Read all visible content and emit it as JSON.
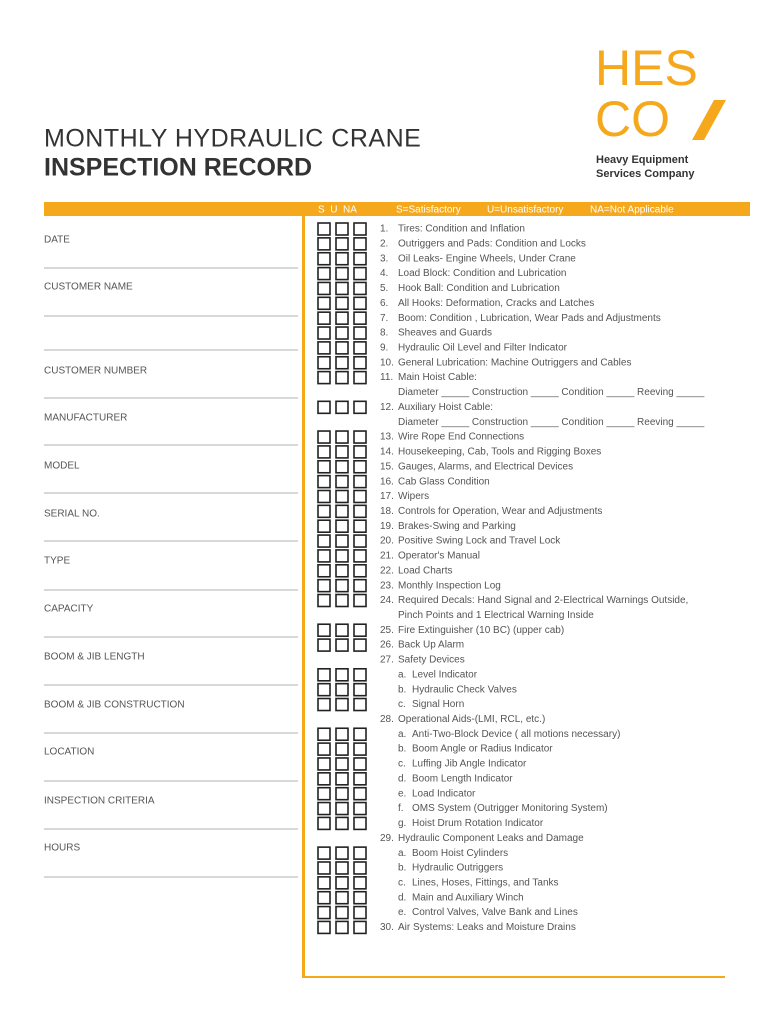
{
  "header": {
    "title_line1": "MONTHLY HYDRAULIC CRANE",
    "title_line2": "INSPECTION RECORD"
  },
  "logo": {
    "top": "HES",
    "bottom": "CO",
    "company_line1": "Heavy Equipment",
    "company_line2": "Services Company"
  },
  "legend": {
    "columns": "S  U  NA",
    "s": "S=Satisfactory",
    "u": "U=Unsatisfactory",
    "na": "NA=Not Applicable"
  },
  "fields": [
    "DATE",
    "CUSTOMER NAME",
    "CUSTOMER NUMBER",
    "MANUFACTURER",
    "MODEL",
    "SERIAL NO.",
    "TYPE",
    "CAPACITY",
    "BOOM & JIB LENGTH",
    "BOOM & JIB CONSTRUCTION",
    "LOCATION",
    "INSPECTION CRITERIA",
    "HOURS"
  ],
  "items": [
    {
      "label": "1.",
      "text": "Tires: Condition and Inflation",
      "boxes": true
    },
    {
      "label": "2.",
      "text": "Outriggers and Pads: Condition and Locks",
      "boxes": true
    },
    {
      "label": "3.",
      "text": "Oil Leaks- Engine Wheels, Under Crane",
      "boxes": true
    },
    {
      "label": "4.",
      "text": "Load Block: Condition and Lubrication",
      "boxes": true
    },
    {
      "label": "5.",
      "text": "Hook Ball: Condition and Lubrication",
      "boxes": true
    },
    {
      "label": "6.",
      "text": "All Hooks: Deformation, Cracks and Latches",
      "boxes": true
    },
    {
      "label": "7.",
      "text": "Boom: Condition , Lubrication, Wear Pads and Adjustments",
      "boxes": true
    },
    {
      "label": "8.",
      "text": "Sheaves and Guards",
      "boxes": true
    },
    {
      "label": "9.",
      "text": "Hydraulic Oil Level and Filter Indicator",
      "boxes": true
    },
    {
      "label": "10.",
      "text": "General Lubrication: Machine Outriggers and Cables",
      "boxes": true
    },
    {
      "label": "11.",
      "text": "Main Hoist Cable:",
      "boxes": true
    },
    {
      "text": "Diameter _____ Construction _____ Condition _____ Reeving _____",
      "boxes": false
    },
    {
      "label": "12.",
      "text": "Auxiliary Hoist Cable:",
      "boxes": true
    },
    {
      "text": "Diameter _____ Construction _____ Condition _____ Reeving _____",
      "boxes": false
    },
    {
      "label": "13.",
      "text": "Wire Rope End Connections",
      "boxes": true
    },
    {
      "label": "14.",
      "text": "Housekeeping, Cab, Tools and Rigging Boxes",
      "boxes": true
    },
    {
      "label": "15.",
      "text": "Gauges, Alarms, and Electrical Devices",
      "boxes": true
    },
    {
      "label": "16.",
      "text": "Cab Glass Condition",
      "boxes": true
    },
    {
      "label": "17.",
      "text": "Wipers",
      "boxes": true
    },
    {
      "label": "18.",
      "text": "Controls for Operation, Wear and Adjustments",
      "boxes": true
    },
    {
      "label": "19.",
      "text": "Brakes-Swing and Parking",
      "boxes": true
    },
    {
      "label": "20.",
      "text": "Positive Swing Lock and Travel Lock",
      "boxes": true
    },
    {
      "label": "21.",
      "text": "Operator's Manual",
      "boxes": true
    },
    {
      "label": "22.",
      "text": "Load Charts",
      "boxes": true
    },
    {
      "label": "23.",
      "text": "Monthly Inspection Log",
      "boxes": true
    },
    {
      "label": "24.",
      "text": "Required Decals: Hand Signal and 2-Electrical Warnings Outside,",
      "boxes": true
    },
    {
      "text": "Pinch Points and 1 Electrical Warning Inside",
      "boxes": false
    },
    {
      "label": "25.",
      "text": "Fire Extinguisher (10 BC) (upper cab)",
      "boxes": true
    },
    {
      "label": "26.",
      "text": "Back Up Alarm",
      "boxes": true
    },
    {
      "label": "27.",
      "text": "Safety Devices",
      "boxes": false
    },
    {
      "label": "a.",
      "text": "Level Indicator",
      "boxes": true
    },
    {
      "label": "b.",
      "text": "Hydraulic Check Valves",
      "boxes": true
    },
    {
      "label": "c.",
      "text": "Signal Horn",
      "boxes": true
    },
    {
      "label": "28.",
      "text": "Operational Aids-(LMI, RCL, etc.)",
      "boxes": false
    },
    {
      "label": "a.",
      "text": "Anti-Two-Block Device ( all motions necessary)",
      "boxes": true
    },
    {
      "label": "b.",
      "text": "Boom Angle or Radius Indicator",
      "boxes": true
    },
    {
      "label": "c.",
      "text": "Luffing Jib Angle Indicator",
      "boxes": true
    },
    {
      "label": "d.",
      "text": "Boom Length Indicator",
      "boxes": true
    },
    {
      "label": "e.",
      "text": "Load Indicator",
      "boxes": true
    },
    {
      "label": "f.",
      "text": "OMS System (Outrigger Monitoring System)",
      "boxes": true
    },
    {
      "label": "g.",
      "text": "Hoist Drum Rotation Indicator",
      "boxes": true
    },
    {
      "label": "29.",
      "text": "Hydraulic Component Leaks and Damage",
      "boxes": false
    },
    {
      "label": "a.",
      "text": "Boom Hoist Cylinders",
      "boxes": true
    },
    {
      "label": "b.",
      "text": "Hydraulic Outriggers",
      "boxes": true
    },
    {
      "label": "c.",
      "text": "Lines, Hoses, Fittings, and Tanks",
      "boxes": true
    },
    {
      "label": "d.",
      "text": "Main and Auxiliary Winch",
      "boxes": true
    },
    {
      "label": "e.",
      "text": "Control Valves, Valve Bank and Lines",
      "boxes": true
    },
    {
      "label": "30.",
      "text": "Air Systems: Leaks and Moisture Drains",
      "boxes": true
    }
  ]
}
